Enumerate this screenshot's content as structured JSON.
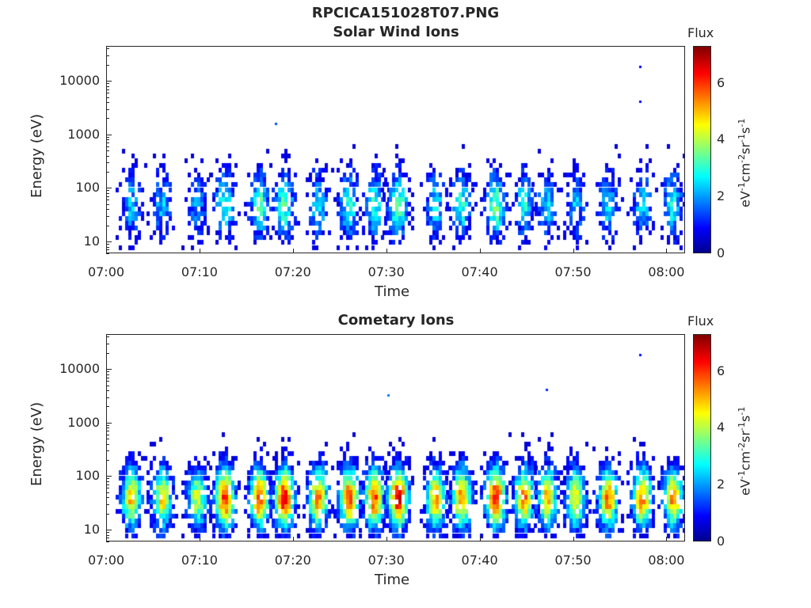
{
  "figure_title": "RPCICA151028T07.PNG",
  "chart_data": [
    {
      "type": "heatmap",
      "title": "Solar Wind Ions",
      "xlabel": "Time",
      "ylabel": "Energy (eV)",
      "x_ticks": [
        "07:00",
        "07:10",
        "07:20",
        "07:30",
        "07:40",
        "07:50",
        "08:00"
      ],
      "x_range": [
        "07:00",
        "08:02"
      ],
      "y_scale": "log",
      "y_ticks": [
        10,
        100,
        1000,
        10000
      ],
      "y_tick_labels": [
        "10",
        "100",
        "1000",
        "10000"
      ],
      "y_range": [
        6,
        45000
      ],
      "colorbar": {
        "title": "Flux",
        "label": "eV-1cm-2sr-1s-1",
        "ticks": [
          0,
          2,
          4,
          6
        ],
        "range": [
          0,
          7.3
        ],
        "colormap": "jet"
      },
      "bursts_minutes": [
        2.5,
        5.8,
        9.5,
        12.5,
        16.2,
        18.8,
        22.5,
        25.8,
        28.5,
        31.0,
        35.0,
        37.8,
        41.5,
        44.5,
        47.0,
        50.0,
        53.5,
        57.2,
        60.5
      ],
      "burst_peak_flux": [
        2.3,
        2.2,
        2.0,
        3.0,
        3.2,
        3.4,
        2.6,
        3.0,
        3.0,
        3.5,
        2.6,
        3.0,
        3.6,
        2.8,
        2.4,
        2.2,
        2.6,
        2.6,
        2.8
      ],
      "outliers": [
        {
          "time": "07:57",
          "energy_eV": 20000,
          "flux": 0.8
        },
        {
          "time": "07:57",
          "energy_eV": 4500,
          "flux": 0.8
        },
        {
          "time": "07:18",
          "energy_eV": 1700,
          "flux": 1.5
        }
      ]
    },
    {
      "type": "heatmap",
      "title": "Cometary Ions",
      "xlabel": "Time",
      "ylabel": "Energy (eV)",
      "x_ticks": [
        "07:00",
        "07:10",
        "07:20",
        "07:30",
        "07:40",
        "07:50",
        "08:00"
      ],
      "x_range": [
        "07:00",
        "08:02"
      ],
      "y_scale": "log",
      "y_ticks": [
        10,
        100,
        1000,
        10000
      ],
      "y_tick_labels": [
        "10",
        "100",
        "1000",
        "10000"
      ],
      "y_range": [
        6,
        45000
      ],
      "colorbar": {
        "title": "Flux",
        "label": "eV-1cm-2sr-1s-1",
        "ticks": [
          0,
          2,
          4,
          6
        ],
        "range": [
          0,
          7.3
        ],
        "colormap": "jet"
      },
      "bursts_minutes": [
        2.5,
        5.8,
        9.5,
        12.5,
        16.2,
        18.8,
        22.5,
        25.8,
        28.5,
        31.0,
        35.0,
        37.8,
        41.5,
        44.5,
        47.0,
        50.0,
        53.5,
        57.2,
        60.5
      ],
      "burst_peak_flux": [
        5.0,
        4.8,
        4.2,
        6.2,
        6.0,
        6.4,
        5.4,
        5.8,
        5.9,
        6.6,
        5.2,
        5.4,
        6.5,
        5.5,
        5.0,
        4.8,
        5.6,
        5.5,
        5.4
      ],
      "outliers": [
        {
          "time": "07:57",
          "energy_eV": 20000,
          "flux": 1.0
        },
        {
          "time": "07:47",
          "energy_eV": 4500,
          "flux": 1.2
        },
        {
          "time": "07:30",
          "energy_eV": 3500,
          "flux": 1.8
        }
      ]
    }
  ]
}
